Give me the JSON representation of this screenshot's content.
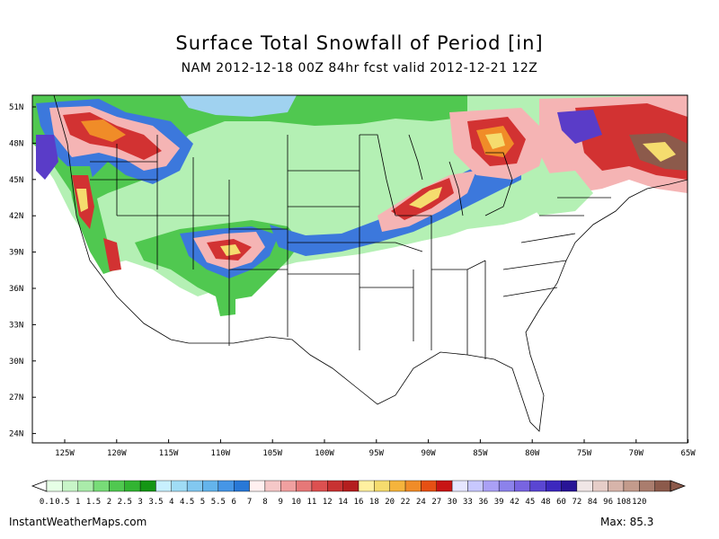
{
  "header": {
    "title": "Surface Total Snowfall of Period [in]",
    "subtitle": "NAM 2012-12-18 00Z 84hr fcst valid 2012-12-21 12Z"
  },
  "map": {
    "lat_labels": [
      "51N",
      "48N",
      "45N",
      "42N",
      "39N",
      "36N",
      "33N",
      "30N",
      "27N",
      "24N"
    ],
    "lon_labels": [
      "125W",
      "120W",
      "115W",
      "110W",
      "105W",
      "100W",
      "95W",
      "90W",
      "85W",
      "80W",
      "75W",
      "70W",
      "65W"
    ],
    "colors": {
      "light_green": "#b4f0b4",
      "mid_green": "#50c850",
      "dark_green": "#149614",
      "light_blue": "#a0d2f0",
      "blue": "#3c78dc",
      "pink": "#f5b4b4",
      "red": "#d23232",
      "yellow": "#f5dc6e",
      "orange": "#f08c28",
      "lavender": "#b4aaf0",
      "purple": "#5a3cc8",
      "brown": "#8c5a4b"
    }
  },
  "legend": {
    "labels": [
      "0.1",
      "0.5",
      "1",
      "1.5",
      "2",
      "2.5",
      "3",
      "3.5",
      "4",
      "4.5",
      "5",
      "5.5",
      "6",
      "7",
      "8",
      "9",
      "10",
      "11",
      "12",
      "14",
      "16",
      "18",
      "20",
      "22",
      "24",
      "27",
      "30",
      "33",
      "36",
      "39",
      "42",
      "45",
      "48",
      "60",
      "72",
      "84",
      "96",
      "108",
      "120"
    ],
    "colors": [
      "#e6ffe6",
      "#c8f5c8",
      "#aaebaa",
      "#78dc78",
      "#50c850",
      "#32b432",
      "#149614",
      "#c8f0ff",
      "#a0dcf5",
      "#82c8f0",
      "#64b4eb",
      "#4696e6",
      "#2878d7",
      "#fff0f0",
      "#f5c8c8",
      "#f0a0a0",
      "#e67878",
      "#dc5050",
      "#c83232",
      "#b41e1e",
      "#fff0a0",
      "#f5dc6e",
      "#f5b43c",
      "#f08c28",
      "#e65014",
      "#c81414",
      "#e6e6ff",
      "#c8c8ff",
      "#aaa0f5",
      "#8c82eb",
      "#7864e1",
      "#5a46d2",
      "#3c28be",
      "#281496",
      "#f0e6e6",
      "#e6cdc8",
      "#d7b4aa",
      "#c39b8c",
      "#aa7d6e",
      "#8c5a4b"
    ]
  },
  "footer": {
    "credit": "InstantWeatherMaps.com",
    "max_label": "Max:  85.3"
  }
}
